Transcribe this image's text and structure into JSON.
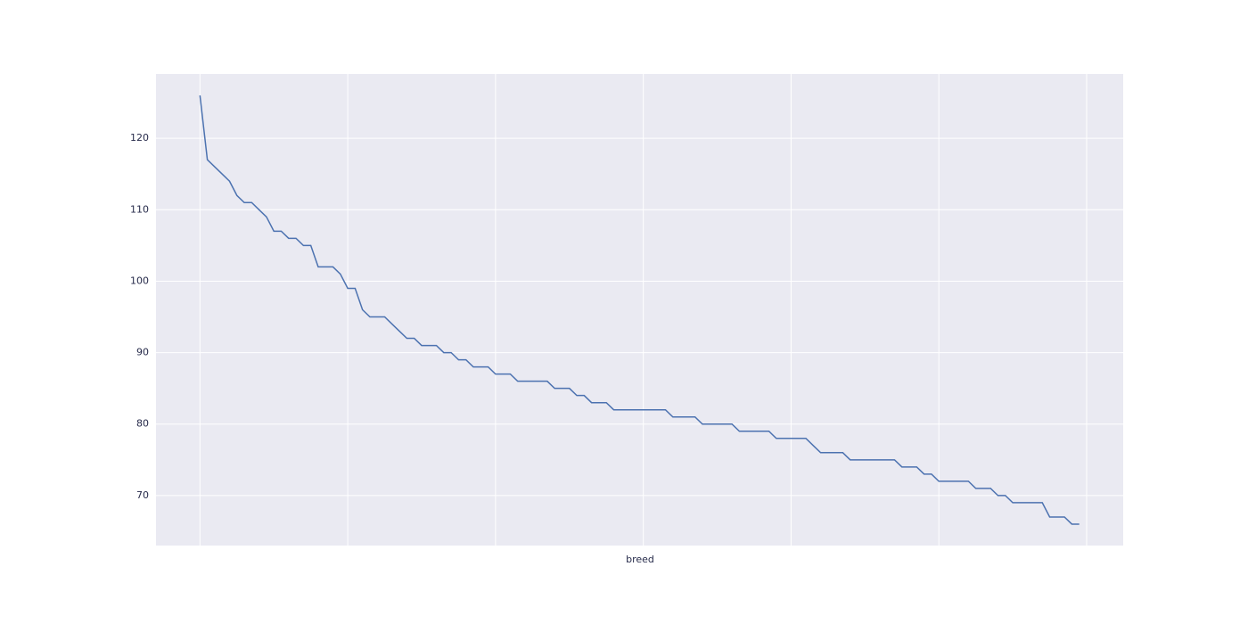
{
  "chart_data": {
    "type": "line",
    "x_label": "breed",
    "categories": [
      null,
      null,
      null,
      null,
      null,
      null,
      null,
      null,
      null,
      null,
      null,
      null,
      null,
      null,
      null,
      null,
      null,
      null,
      null,
      null,
      null,
      null,
      null,
      null,
      null,
      null,
      null,
      null,
      null,
      null,
      null,
      null,
      null,
      null,
      null,
      null,
      null,
      null,
      null,
      null,
      null,
      null,
      null,
      null,
      null,
      null,
      null,
      null,
      null,
      null,
      null,
      null,
      null,
      null,
      null,
      null,
      null,
      null,
      null,
      null,
      null,
      null,
      null,
      null,
      null,
      null,
      null,
      null,
      null,
      null,
      null,
      null,
      null,
      null,
      null,
      null,
      null,
      null,
      null,
      null,
      null,
      null,
      null,
      null,
      null,
      null,
      null,
      null,
      null,
      null,
      null,
      null,
      null,
      null,
      null,
      null,
      null,
      null,
      null,
      null,
      null,
      null,
      null,
      null,
      null,
      null,
      null,
      null,
      null,
      null,
      null,
      null,
      null,
      null,
      null,
      null,
      null,
      null,
      null,
      null
    ],
    "values": [
      126,
      117,
      116,
      115,
      114,
      112,
      111,
      111,
      110,
      109,
      107,
      107,
      106,
      106,
      105,
      105,
      102,
      102,
      102,
      101,
      99,
      99,
      96,
      95,
      95,
      95,
      94,
      93,
      92,
      92,
      91,
      91,
      91,
      90,
      90,
      89,
      89,
      88,
      88,
      88,
      87,
      87,
      87,
      86,
      86,
      86,
      86,
      86,
      85,
      85,
      85,
      84,
      84,
      83,
      83,
      83,
      82,
      82,
      82,
      82,
      82,
      82,
      82,
      82,
      81,
      81,
      81,
      81,
      80,
      80,
      80,
      80,
      80,
      79,
      79,
      79,
      79,
      79,
      78,
      78,
      78,
      78,
      78,
      77,
      76,
      76,
      76,
      76,
      75,
      75,
      75,
      75,
      75,
      75,
      75,
      74,
      74,
      74,
      73,
      73,
      72,
      72,
      72,
      72,
      72,
      71,
      71,
      71,
      70,
      70,
      69,
      69,
      69,
      69,
      69,
      67,
      67,
      67,
      66,
      66
    ],
    "color": "#4c72b0",
    "ylim": [
      63,
      129
    ],
    "yticks": [
      70,
      80,
      90,
      100,
      110,
      120
    ],
    "grid": true
  }
}
